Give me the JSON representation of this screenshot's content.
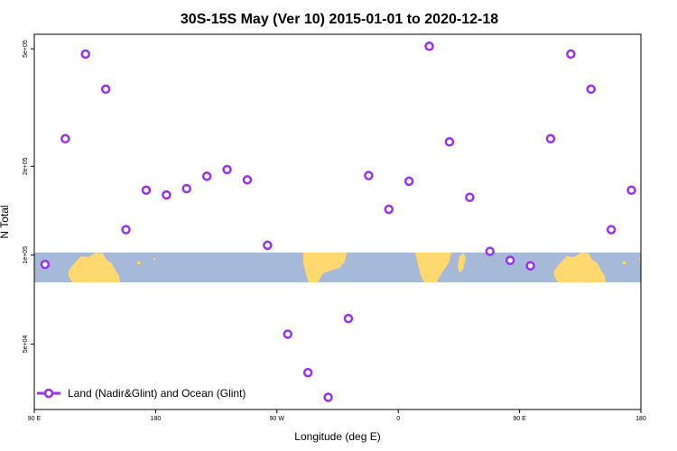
{
  "chart_data": {
    "type": "scatter",
    "title": "30S-15S May (Ver 10)   2015-01-01 to 2020-12-18",
    "xlabel": "Longitude (deg E)",
    "ylabel": "N Total",
    "x_ticks": [
      {
        "lon": 90,
        "label": "90 E"
      },
      {
        "lon": 180,
        "label": "180"
      },
      {
        "lon": 270,
        "label": "90 W"
      },
      {
        "lon": 360,
        "label": "0"
      },
      {
        "lon": 450,
        "label": "90 E"
      },
      {
        "lon": 540,
        "label": "180"
      }
    ],
    "y_scale": "log",
    "y_ticks": [
      {
        "value": 50000,
        "label": "5e+04"
      },
      {
        "value": 100000,
        "label": "1e+05"
      },
      {
        "value": 200000,
        "label": "2e+05"
      },
      {
        "value": 500000,
        "label": "5e+05"
      }
    ],
    "xlim": [
      90,
      540
    ],
    "ylim": [
      30000,
      560000
    ],
    "colors": {
      "marker": "#9b30f0",
      "ocean": "#a7b9d9",
      "land": "#ffd970"
    },
    "series": [
      {
        "name": "Land (Nadir&Glint) and Ocean (Glint)",
        "points": [
          [
            98,
            93000
          ],
          [
            113,
            248000
          ],
          [
            128,
            480000
          ],
          [
            143,
            365000
          ],
          [
            158,
            122000
          ],
          [
            173,
            166000
          ],
          [
            188,
            160000
          ],
          [
            203,
            168000
          ],
          [
            218,
            185000
          ],
          [
            233,
            195000
          ],
          [
            248,
            180000
          ],
          [
            263,
            108000
          ],
          [
            278,
            54000
          ],
          [
            293,
            40000
          ],
          [
            308,
            33000
          ],
          [
            323,
            61000
          ],
          [
            338,
            186000
          ],
          [
            353,
            143000
          ],
          [
            368,
            178000
          ],
          [
            383,
            510000
          ],
          [
            398,
            242000
          ],
          [
            413,
            157000
          ],
          [
            428,
            103000
          ],
          [
            443,
            96000
          ],
          [
            458,
            92000
          ],
          [
            473,
            248000
          ],
          [
            488,
            480000
          ],
          [
            503,
            365000
          ],
          [
            518,
            122000
          ],
          [
            533,
            166000
          ]
        ]
      }
    ]
  }
}
